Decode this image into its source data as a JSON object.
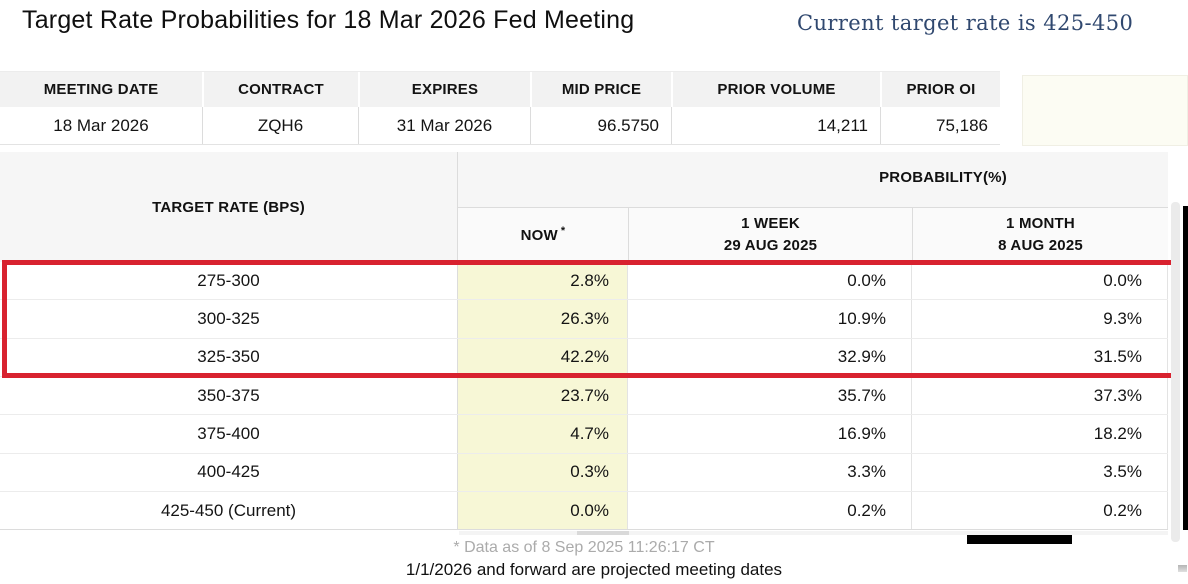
{
  "page": {
    "title": "Target Rate Probabilities for 18 Mar 2026 Fed Meeting",
    "current_rate_note": "Current target rate is 425-450"
  },
  "contract_table": {
    "headers": [
      "MEETING DATE",
      "CONTRACT",
      "EXPIRES",
      "MID PRICE",
      "PRIOR VOLUME",
      "PRIOR OI"
    ],
    "row": {
      "meeting_date": "18 Mar 2026",
      "contract": "ZQH6",
      "expires": "31 Mar 2026",
      "mid_price": "96.5750",
      "prior_volume": "14,211",
      "prior_oi": "75,186"
    }
  },
  "prob_table": {
    "target_rate_header": "TARGET RATE (BPS)",
    "probability_header": "PROBABILITY(%)",
    "col_now": "NOW",
    "col_now_footnote": "*",
    "col_week_label": "1 WEEK",
    "col_week_date": "29 AUG 2025",
    "col_month_label": "1 MONTH",
    "col_month_date": "8 AUG 2025",
    "rows": [
      {
        "label": "275-300",
        "now": "2.8%",
        "week": "0.0%",
        "month": "0.0%"
      },
      {
        "label": "300-325",
        "now": "26.3%",
        "week": "10.9%",
        "month": "9.3%"
      },
      {
        "label": "325-350",
        "now": "42.2%",
        "week": "32.9%",
        "month": "31.5%"
      },
      {
        "label": "350-375",
        "now": "23.7%",
        "week": "35.7%",
        "month": "37.3%"
      },
      {
        "label": "375-400",
        "now": "4.7%",
        "week": "16.9%",
        "month": "18.2%"
      },
      {
        "label": "400-425",
        "now": "0.3%",
        "week": "3.3%",
        "month": "3.5%"
      },
      {
        "label": "425-450 (Current)",
        "now": "0.0%",
        "week": "0.2%",
        "month": "0.2%"
      }
    ]
  },
  "footer": {
    "data_as_of": "* Data as of 8 Sep 2025 11:26:17 CT",
    "projection_note": "1/1/2026 and forward are projected meeting dates"
  },
  "colors": {
    "highlight_red": "#d8222f",
    "now_column_yellow": "#f7f7d6",
    "header_gray": "#f2f2f2",
    "current_rate_blue": "#30486f"
  }
}
